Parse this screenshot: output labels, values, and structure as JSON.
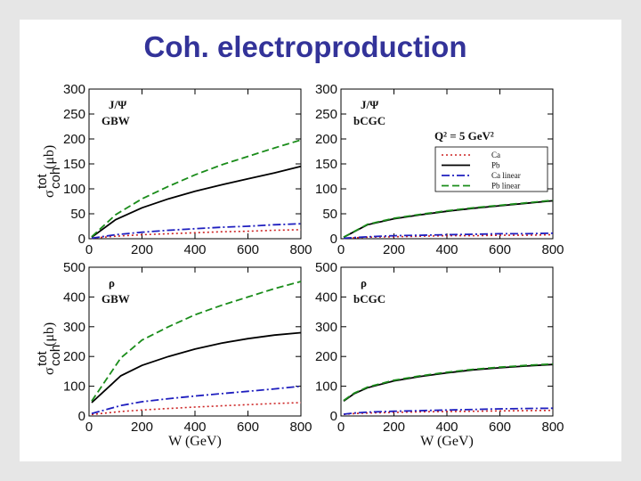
{
  "title": "Coh. electroproduction",
  "legend": {
    "q2": "Q² = 5 GeV²",
    "items": [
      "Ca",
      "Pb",
      "Ca linear",
      "Pb linear"
    ]
  },
  "y_axis_label": "σ",
  "y_axis_sup": "tot",
  "y_axis_sub": "coh",
  "y_axis_unit": "(μb)",
  "colors": {
    "Ca": "#cc2222",
    "Pb": "#000000",
    "Ca linear": "#1f1fbf",
    "Pb linear": "#1a8c1a"
  },
  "chart_data": [
    {
      "type": "line",
      "label_line1": "J/Ψ",
      "label_line2": "GBW",
      "xlabel": "",
      "ylabel": "σ tot coh (μb)",
      "xlim": [
        0,
        800
      ],
      "ylim": [
        0,
        300
      ],
      "xticks": [
        0,
        200,
        400,
        600,
        800
      ],
      "yticks": [
        0,
        50,
        100,
        150,
        200,
        250,
        300
      ],
      "series": [
        {
          "name": "Ca",
          "x": [
            10,
            100,
            200,
            300,
            400,
            500,
            600,
            700,
            800
          ],
          "y": [
            1,
            5,
            8,
            10,
            12,
            14,
            15,
            17,
            18
          ]
        },
        {
          "name": "Pb",
          "x": [
            10,
            100,
            200,
            300,
            400,
            500,
            600,
            700,
            800
          ],
          "y": [
            3,
            38,
            62,
            80,
            95,
            108,
            120,
            132,
            145
          ]
        },
        {
          "name": "Ca linear",
          "x": [
            10,
            100,
            200,
            300,
            400,
            500,
            600,
            700,
            800
          ],
          "y": [
            1,
            8,
            13,
            17,
            20,
            23,
            25,
            28,
            30
          ]
        },
        {
          "name": "Pb linear",
          "x": [
            10,
            100,
            200,
            300,
            400,
            500,
            600,
            700,
            800
          ],
          "y": [
            4,
            48,
            80,
            105,
            128,
            148,
            165,
            182,
            198
          ]
        }
      ]
    },
    {
      "type": "line",
      "label_line1": "J/Ψ",
      "label_line2": "bCGC",
      "xlabel": "",
      "ylabel": "",
      "xlim": [
        0,
        800
      ],
      "ylim": [
        0,
        300
      ],
      "xticks": [
        0,
        200,
        400,
        600,
        800
      ],
      "yticks": [
        0,
        50,
        100,
        150,
        200,
        250,
        300
      ],
      "legend": "right",
      "series": [
        {
          "name": "Ca",
          "x": [
            10,
            100,
            200,
            300,
            400,
            500,
            600,
            700,
            800
          ],
          "y": [
            1,
            3,
            4,
            5,
            6,
            6,
            7,
            7,
            8
          ]
        },
        {
          "name": "Pb",
          "x": [
            10,
            100,
            200,
            300,
            400,
            500,
            600,
            700,
            800
          ],
          "y": [
            3,
            28,
            40,
            48,
            55,
            61,
            66,
            71,
            76
          ]
        },
        {
          "name": "Ca linear",
          "x": [
            10,
            100,
            200,
            300,
            400,
            500,
            600,
            700,
            800
          ],
          "y": [
            1,
            4,
            6,
            7,
            8,
            9,
            10,
            10,
            11
          ]
        },
        {
          "name": "Pb linear",
          "x": [
            10,
            100,
            200,
            300,
            400,
            500,
            600,
            700,
            800
          ],
          "y": [
            3,
            29,
            41,
            49,
            56,
            62,
            67,
            72,
            77
          ]
        }
      ]
    },
    {
      "type": "line",
      "label_line1": "ρ",
      "label_line2": "GBW",
      "xlabel": "W (GeV)",
      "ylabel": "σ tot coh (μb)",
      "xlim": [
        0,
        800
      ],
      "ylim": [
        0,
        500
      ],
      "xticks": [
        0,
        200,
        400,
        600,
        800
      ],
      "yticks": [
        0,
        100,
        200,
        300,
        400,
        500
      ],
      "series": [
        {
          "name": "Ca",
          "x": [
            10,
            120,
            200,
            300,
            400,
            500,
            600,
            700,
            800
          ],
          "y": [
            5,
            15,
            20,
            25,
            30,
            34,
            38,
            42,
            45
          ]
        },
        {
          "name": "Pb",
          "x": [
            10,
            120,
            200,
            300,
            400,
            500,
            600,
            700,
            800
          ],
          "y": [
            45,
            135,
            170,
            200,
            225,
            245,
            260,
            272,
            280
          ]
        },
        {
          "name": "Ca linear",
          "x": [
            10,
            120,
            200,
            300,
            400,
            500,
            600,
            700,
            800
          ],
          "y": [
            8,
            35,
            48,
            58,
            67,
            75,
            83,
            91,
            100
          ]
        },
        {
          "name": "Pb linear",
          "x": [
            10,
            120,
            200,
            300,
            400,
            500,
            600,
            700,
            800
          ],
          "y": [
            50,
            195,
            255,
            300,
            340,
            372,
            400,
            428,
            452
          ]
        }
      ]
    },
    {
      "type": "line",
      "label_line1": "ρ",
      "label_line2": "bCGC",
      "xlabel": "W (GeV)",
      "ylabel": "",
      "xlim": [
        0,
        800
      ],
      "ylim": [
        0,
        500
      ],
      "xticks": [
        0,
        200,
        400,
        600,
        800
      ],
      "yticks": [
        0,
        100,
        200,
        300,
        400,
        500
      ],
      "series": [
        {
          "name": "Ca",
          "x": [
            10,
            50,
            100,
            200,
            300,
            400,
            500,
            600,
            700,
            800
          ],
          "y": [
            5,
            8,
            10,
            12,
            14,
            15,
            16,
            17,
            18,
            19
          ]
        },
        {
          "name": "Pb",
          "x": [
            10,
            50,
            100,
            200,
            300,
            400,
            500,
            600,
            700,
            800
          ],
          "y": [
            50,
            75,
            95,
            118,
            133,
            145,
            155,
            162,
            168,
            173
          ]
        },
        {
          "name": "Ca linear",
          "x": [
            10,
            50,
            100,
            200,
            300,
            400,
            500,
            600,
            700,
            800
          ],
          "y": [
            6,
            10,
            13,
            16,
            18,
            20,
            22,
            24,
            25,
            26
          ]
        },
        {
          "name": "Pb linear",
          "x": [
            10,
            50,
            100,
            200,
            300,
            400,
            500,
            600,
            700,
            800
          ],
          "y": [
            52,
            77,
            97,
            120,
            135,
            147,
            157,
            164,
            170,
            175
          ]
        }
      ]
    }
  ]
}
